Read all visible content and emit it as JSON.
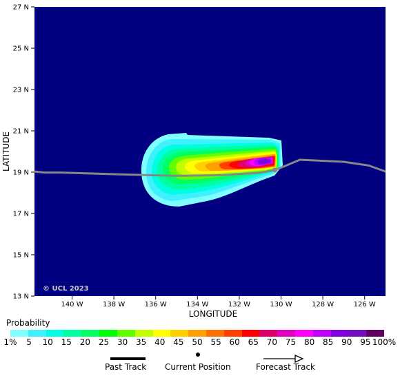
{
  "map": {
    "lat_labels": [
      "27 N",
      "25 N",
      "23 N",
      "21 N",
      "19 N",
      "17 N",
      "15 N",
      "13 N"
    ],
    "lat_values": [
      27,
      25,
      23,
      21,
      19,
      17,
      15,
      13
    ],
    "lon_labels": [
      "140 W",
      "138 W",
      "136 W",
      "134 W",
      "132 W",
      "130 W",
      "128 W",
      "126 W"
    ],
    "lon_values": [
      140,
      138,
      136,
      134,
      132,
      130,
      128,
      126
    ],
    "lon_range_west": [
      141.8,
      125.0
    ],
    "lat_range": [
      13,
      27
    ],
    "xlabel": "LONGITUDE",
    "ylabel": "LATITUDE",
    "watermark": "© UCL 2023",
    "ocean_color": "#000080",
    "current_position": {
      "lon_w": 130.3,
      "lat": 19.1
    },
    "track": [
      {
        "lon_w": 141.8,
        "lat": 19.03
      },
      {
        "lon_w": 141.3,
        "lat": 18.98
      },
      {
        "lon_w": 140.5,
        "lat": 18.98
      },
      {
        "lon_w": 138.0,
        "lat": 18.9
      },
      {
        "lon_w": 135.0,
        "lat": 18.82
      },
      {
        "lon_w": 133.0,
        "lat": 18.85
      },
      {
        "lon_w": 131.0,
        "lat": 18.97
      },
      {
        "lon_w": 130.3,
        "lat": 19.1
      },
      {
        "lon_w": 129.8,
        "lat": 19.3
      },
      {
        "lon_w": 129.1,
        "lat": 19.6
      },
      {
        "lon_w": 127.0,
        "lat": 19.5
      },
      {
        "lon_w": 125.8,
        "lat": 19.32
      },
      {
        "lon_w": 125.0,
        "lat": 19.03
      }
    ]
  },
  "legend": {
    "title": "Probability",
    "labels": [
      "1%",
      "5",
      "10",
      "15",
      "20",
      "25",
      "30",
      "35",
      "40",
      "45",
      "50",
      "55",
      "60",
      "65",
      "70",
      "75",
      "80",
      "85",
      "90",
      "95",
      "100%"
    ],
    "colors": [
      "#80ffff",
      "#40f0ff",
      "#00ffe0",
      "#00ffa0",
      "#00ff60",
      "#00ff00",
      "#60ff00",
      "#c0ff00",
      "#ffff00",
      "#ffd000",
      "#ffa000",
      "#ff7000",
      "#ff4000",
      "#ff0000",
      "#e0006a",
      "#e000c0",
      "#ff00ff",
      "#c000ff",
      "#8000e0",
      "#7010c0",
      "#600060"
    ],
    "past_track": "Past Track",
    "current_position": "Current Position",
    "forecast_track": "Forecast Track"
  }
}
